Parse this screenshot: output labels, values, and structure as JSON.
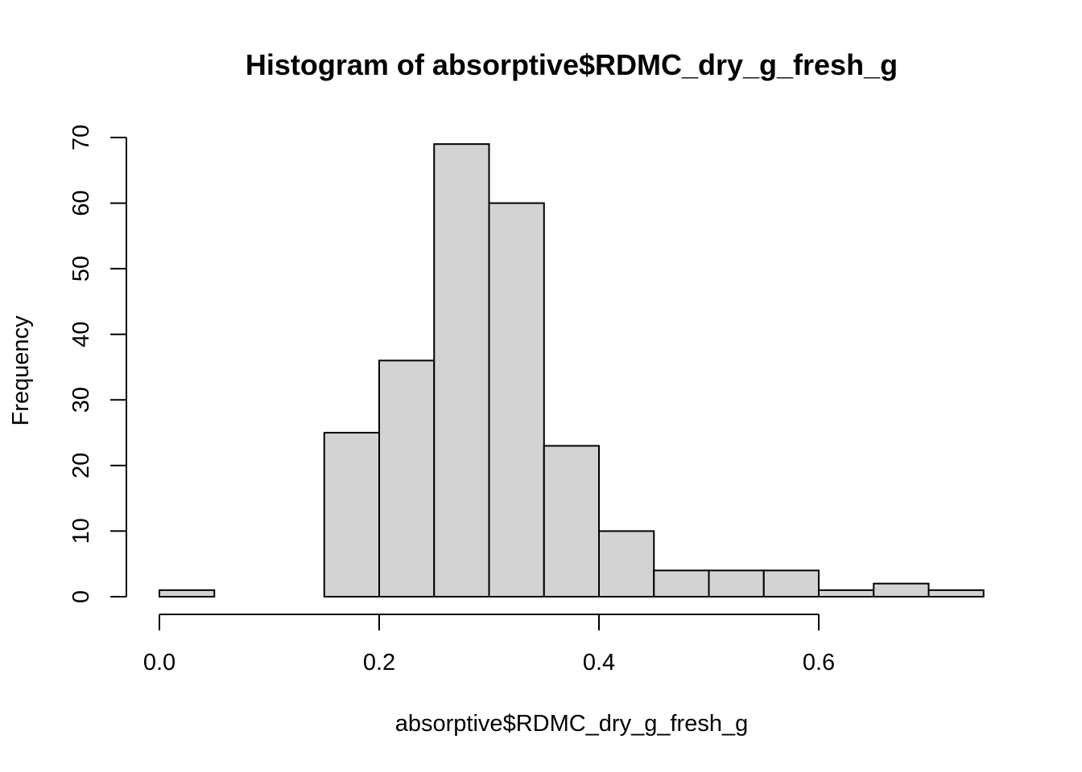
{
  "chart_data": {
    "type": "bar",
    "subtype": "histogram",
    "title": "Histogram of absorptive$RDMC_dry_g_fresh_g",
    "xlabel": "absorptive$RDMC_dry_g_fresh_g",
    "ylabel": "Frequency",
    "bin_width": 0.05,
    "bins": [
      {
        "start": 0.0,
        "end": 0.05,
        "count": 1
      },
      {
        "start": 0.05,
        "end": 0.1,
        "count": 0
      },
      {
        "start": 0.1,
        "end": 0.15,
        "count": 0
      },
      {
        "start": 0.15,
        "end": 0.2,
        "count": 25
      },
      {
        "start": 0.2,
        "end": 0.25,
        "count": 36
      },
      {
        "start": 0.25,
        "end": 0.3,
        "count": 69
      },
      {
        "start": 0.3,
        "end": 0.35,
        "count": 60
      },
      {
        "start": 0.35,
        "end": 0.4,
        "count": 23
      },
      {
        "start": 0.4,
        "end": 0.45,
        "count": 10
      },
      {
        "start": 0.45,
        "end": 0.5,
        "count": 4
      },
      {
        "start": 0.5,
        "end": 0.55,
        "count": 4
      },
      {
        "start": 0.55,
        "end": 0.6,
        "count": 4
      },
      {
        "start": 0.6,
        "end": 0.65,
        "count": 1
      },
      {
        "start": 0.65,
        "end": 0.7,
        "count": 2
      },
      {
        "start": 0.7,
        "end": 0.75,
        "count": 1
      }
    ],
    "x_ticks": [
      {
        "value": 0.0,
        "label": "0.0"
      },
      {
        "value": 0.2,
        "label": "0.2"
      },
      {
        "value": 0.4,
        "label": "0.4"
      },
      {
        "value": 0.6,
        "label": "0.6"
      }
    ],
    "y_ticks": [
      {
        "value": 0,
        "label": "0"
      },
      {
        "value": 10,
        "label": "10"
      },
      {
        "value": 20,
        "label": "20"
      },
      {
        "value": 30,
        "label": "30"
      },
      {
        "value": 40,
        "label": "40"
      },
      {
        "value": 50,
        "label": "50"
      },
      {
        "value": 60,
        "label": "60"
      },
      {
        "value": 70,
        "label": "70"
      }
    ],
    "xlim": [
      0.0,
      0.75
    ],
    "ylim": [
      0,
      70
    ],
    "x_axis_range": [
      0.0,
      0.6
    ],
    "grid": false,
    "legend": "none",
    "colors": {
      "bar_fill": "#d3d3d3",
      "bar_stroke": "#000000",
      "background": "#ffffff"
    }
  }
}
